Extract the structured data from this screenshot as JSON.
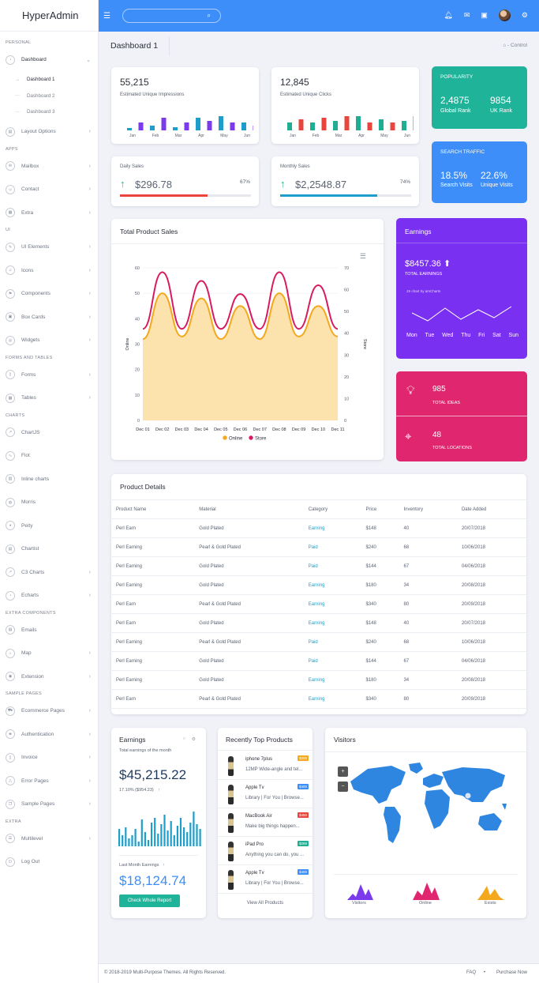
{
  "app": {
    "brand_bold": "Hyper",
    "brand_rest": "Admin"
  },
  "sidebar": {
    "personal": "PERSONAL",
    "dashboard": "Dashboard",
    "dashboard1": "Dashboard 1",
    "dashboard2": "Dashboard 2",
    "dashboard3": "Dashboard 3",
    "layout_options": "Layout Options",
    "apps": "APPS",
    "mailbox": "Mailbox",
    "contact": "Contact",
    "extra": "Extra",
    "ui": "UI",
    "ui_elements": "UI Elements",
    "icons": "Icons",
    "components": "Components",
    "box_cards": "Box Cards",
    "widgets": "Widgets",
    "forms_tables": "FORMS And TABLES",
    "forms": "Forms",
    "tables": "Tables",
    "charts": "CHARTS",
    "chartjs": "ChartJS",
    "flot": "Flot",
    "inline_charts": "Inline charts",
    "morris": "Morris",
    "peity": "Peity",
    "chartist": "Chartist",
    "c3": "C3 Charts",
    "echarts": "Echarts",
    "extra_components": "EXTRA COMPONENTS",
    "emails": "Emails",
    "map": "Map",
    "extension": "Extension",
    "sample_pages": "SAMPLE PAGES",
    "ecommerce": "Ecommerce Pages",
    "authentication": "Authentication",
    "invoice": "Invoice",
    "error_pages": "Error Pages",
    "sample_pages_item": "Sample Pages",
    "extra2": "EXTRA",
    "multilevel": "Multilevel",
    "logout": "Log Out"
  },
  "page": {
    "title": "Dashboard 1",
    "crumb": "- Control"
  },
  "stats": {
    "impressions_value": "55,215",
    "impressions_label": "Estimated Unique Impressions",
    "clicks_value": "12,845",
    "clicks_label": "Estimated Unique Clicks",
    "months": [
      "Jan",
      "Feb",
      "Mar",
      "Apr",
      "May",
      "Jun"
    ],
    "daily_label": "Daily Sales",
    "daily_value": "$296.78",
    "daily_pct": "67%",
    "daily_frac": 0.67,
    "monthly_label": "Monthly Sales",
    "monthly_value": "$2,2548.87",
    "monthly_pct": "74%",
    "monthly_frac": 0.74
  },
  "popularity": {
    "title": "POPULARITY",
    "v1": "2,4875",
    "l1": "Global Rank",
    "v2": "9854",
    "l2": "UK Rank"
  },
  "traffic": {
    "title": "SEARCH TRAFFIC",
    "v1": "18.5%",
    "l1": "Search Visits",
    "v2": "22.6%",
    "l2": "Unique Visits"
  },
  "earnings_card": {
    "title": "Earnings",
    "value": "$8457.36",
    "label": "TOTAL EARNINGS",
    "credit": "JS chart by amCharts",
    "days": [
      "Mon",
      "Tue",
      "Wed",
      "Thu",
      "Fri",
      "Sat",
      "Sun"
    ]
  },
  "ideas": {
    "value": "985",
    "label": "TOTAL IDEAS"
  },
  "locations": {
    "value": "48",
    "label": "TOTAL LOCATIONS"
  },
  "product_sales": {
    "title": "Total Product Sales"
  },
  "chart_data": {
    "type": "area",
    "title": "Total Product Sales",
    "categories": [
      "Dec 01",
      "Dec 02",
      "Dec 03",
      "Dec 04",
      "Dec 05",
      "Dec 06",
      "Dec 07",
      "Dec 08",
      "Dec 09",
      "Dec 10",
      "Dec 11"
    ],
    "ylabel": "Online",
    "y2label": "Store",
    "ylim": [
      0,
      60
    ],
    "y2lim": [
      0,
      70
    ],
    "yticks": [
      "0",
      "10",
      "20",
      "30",
      "40",
      "50",
      "60"
    ],
    "y2ticks": [
      "0",
      "10",
      "20",
      "30",
      "40",
      "50",
      "60",
      "70"
    ],
    "series": [
      {
        "name": "Online",
        "color": "#f4a81d",
        "values": [
          32,
          50,
          33,
          48,
          32,
          45,
          32,
          50,
          33,
          45,
          33
        ]
      },
      {
        "name": "Store",
        "color": "#d81b60",
        "values": [
          42,
          68,
          42,
          64,
          42,
          58,
          42,
          68,
          42,
          62,
          42
        ]
      }
    ],
    "legend": "bottom"
  },
  "product_details": {
    "title": "Product Details",
    "headers": [
      "Product Name",
      "Material",
      "Category",
      "Price",
      "Inventory",
      "Date Added"
    ],
    "rows": [
      [
        "Perl Earn",
        "Gold Plated",
        "Earning",
        "$148",
        "40",
        "20/07/2018"
      ],
      [
        "Perl Earning",
        "Pearl & Gold Plated",
        "Paid",
        "$240",
        "68",
        "10/06/2018"
      ],
      [
        "Perl Earning",
        "Gold Plated",
        "Paid",
        "$144",
        "67",
        "04/06/2018"
      ],
      [
        "Perl Earning",
        "Gold Plated",
        "Earning",
        "$180",
        "34",
        "20/08/2018"
      ],
      [
        "Perl Earn",
        "Pearl & Gold Plated",
        "Earning",
        "$340",
        "80",
        "20/09/2018"
      ],
      [
        "Perl Earn",
        "Gold Plated",
        "Earning",
        "$148",
        "40",
        "20/07/2018"
      ],
      [
        "Perl Earning",
        "Pearl & Gold Plated",
        "Paid",
        "$240",
        "68",
        "10/06/2018"
      ],
      [
        "Perl Earning",
        "Gold Plated",
        "Paid",
        "$144",
        "67",
        "04/06/2018"
      ],
      [
        "Perl Earning",
        "Gold Plated",
        "Earning",
        "$180",
        "34",
        "20/08/2018"
      ],
      [
        "Perl Earn",
        "Pearl & Gold Plated",
        "Earning",
        "$340",
        "80",
        "20/09/2018"
      ]
    ]
  },
  "earnings_widget": {
    "title": "Earnings",
    "subtitle": "Total earnings of the month",
    "value": "$45,215.22",
    "change": "17.10% ($954.23)",
    "last_label": "Last Month Earnings",
    "last_value": "$18,124.74",
    "button": "Check Whole Report"
  },
  "top_products": {
    "title": "Recently Top Products",
    "view_all": "View All Products",
    "items": [
      {
        "name": "iphone 7plus",
        "desc": "12MP Wide-angle and tel...",
        "price": "$300",
        "color": "#f4a81d"
      },
      {
        "name": "Apple Tv",
        "desc": "Library | For You | Browse...",
        "price": "$400",
        "color": "#3d8ef8"
      },
      {
        "name": "MacBook Air",
        "desc": "Make big things happen...",
        "price": "$450",
        "color": "#e9453d"
      },
      {
        "name": "iPad Pro",
        "desc": "Anything you can do, you ...",
        "price": "$289",
        "color": "#1fae91"
      },
      {
        "name": "Apple Tv",
        "desc": "Library | For You | Browse...",
        "price": "$400",
        "color": "#3d8ef8"
      }
    ]
  },
  "visitors": {
    "title": "Visitors",
    "zoom_in": "+",
    "zoom_out": "−",
    "legend": [
      "Visitors",
      "Online",
      "Exists"
    ],
    "colors": [
      "#7c3aed",
      "#e0266f",
      "#f4a81d"
    ]
  },
  "footer": {
    "copyright": "© 2018-2019 Multi-Purpose Themes. All Rights Reserved.",
    "faq": "FAQ",
    "purchase": "Purchase Now"
  }
}
